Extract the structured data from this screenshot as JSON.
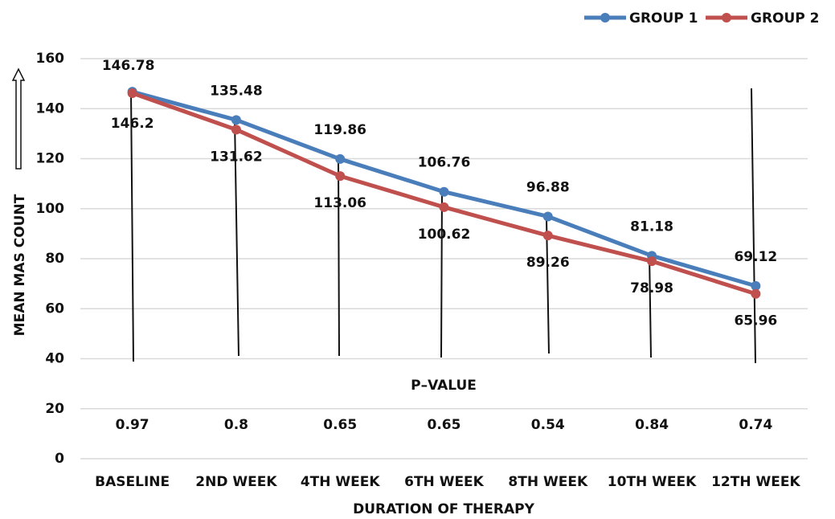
{
  "chart_data": {
    "type": "line",
    "categories": [
      "BASELINE",
      "2ND WEEK",
      "4TH WEEK",
      "6TH WEEK",
      "8TH WEEK",
      "10TH WEEK",
      "12TH WEEK"
    ],
    "series": [
      {
        "name": "GROUP 1",
        "color": "#4a7ebb",
        "values": [
          146.78,
          135.48,
          119.86,
          106.76,
          96.88,
          81.18,
          69.12
        ]
      },
      {
        "name": "GROUP 2",
        "color": "#c0504d",
        "values": [
          146.2,
          131.62,
          113.06,
          100.62,
          89.26,
          78.98,
          65.96
        ]
      }
    ],
    "annotation": "P–VALUE",
    "p_values": [
      0.97,
      0.8,
      0.65,
      0.65,
      0.54,
      0.84,
      0.74
    ],
    "xlabel": "DURATION OF THERAPY",
    "ylabel": "MEAN MAS COUNT",
    "ylim": [
      0,
      160
    ],
    "yticks": [
      0,
      20,
      40,
      60,
      80,
      100,
      120,
      140,
      160
    ],
    "grid": true,
    "legend": "top-right"
  }
}
